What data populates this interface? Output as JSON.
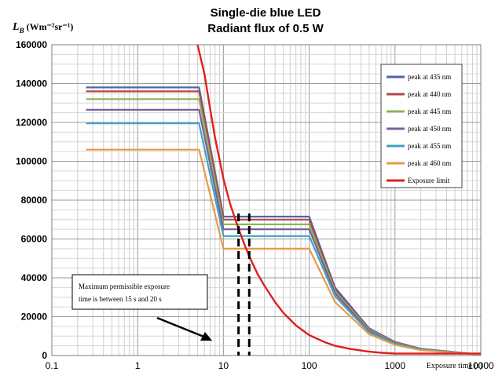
{
  "chart_data": {
    "type": "line",
    "title": "Single-die blue LED",
    "subtitle": "Radiant flux of 0.5 W",
    "ylabel": "L_B (Wm⁻²sr⁻¹)",
    "ylabel_main": "L",
    "ylabel_sub": "B",
    "ylabel_unit": "(Wm⁻²sr⁻¹)",
    "xlabel": "Exposure time (s)",
    "xscale": "log",
    "xlim": [
      0.1,
      10000
    ],
    "ylim": [
      0,
      160000
    ],
    "grid": true,
    "legend_position": "top-right",
    "x_tick_labels": [
      "0.1",
      "1",
      "10",
      "100",
      "1000",
      "10000"
    ],
    "y_tick_labels": [
      "0",
      "20000",
      "40000",
      "60000",
      "80000",
      "100000",
      "120000",
      "140000",
      "160000"
    ],
    "y_ticks": [
      0,
      20000,
      40000,
      60000,
      80000,
      100000,
      120000,
      140000,
      160000
    ],
    "x_ticks": [
      0.1,
      1,
      10,
      100,
      1000,
      10000
    ],
    "series": [
      {
        "name": "peak at 435 nm",
        "color": "#4a66ac",
        "x": [
          0.25,
          5.2,
          10,
          100,
          200,
          500,
          1000,
          2000,
          10000
        ],
        "y": [
          138000,
          138000,
          71500,
          71500,
          35000,
          14000,
          7000,
          3500,
          500
        ]
      },
      {
        "name": "peak at 440 nm",
        "color": "#b04a47",
        "x": [
          0.25,
          5.2,
          10,
          100,
          200,
          500,
          1000,
          2000,
          10000
        ],
        "y": [
          136000,
          136000,
          70000,
          70000,
          34000,
          13600,
          6800,
          3400,
          500
        ]
      },
      {
        "name": "peak at 445 nm",
        "color": "#8db356",
        "x": [
          0.25,
          5.2,
          10,
          100,
          200,
          500,
          1000,
          2000,
          10000
        ],
        "y": [
          132000,
          132000,
          67500,
          67500,
          33000,
          13200,
          6600,
          3300,
          500
        ]
      },
      {
        "name": "peak at 450 nm",
        "color": "#7a5ea0",
        "x": [
          0.25,
          5.2,
          10,
          100,
          200,
          500,
          1000,
          2000,
          10000
        ],
        "y": [
          126500,
          126500,
          65000,
          65000,
          32000,
          12700,
          6350,
          3200,
          500
        ]
      },
      {
        "name": "peak at 455 nm",
        "color": "#3fa3c4",
        "x": [
          0.25,
          5.2,
          10,
          100,
          200,
          500,
          1000,
          2000,
          10000
        ],
        "y": [
          119500,
          119500,
          61500,
          61500,
          30500,
          12000,
          6000,
          3000,
          500
        ]
      },
      {
        "name": "peak at 460 nm",
        "color": "#e69a47",
        "x": [
          0.25,
          5.2,
          10,
          100,
          200,
          500,
          1000,
          2000,
          10000
        ],
        "y": [
          106000,
          106000,
          55000,
          55000,
          27500,
          11000,
          5500,
          2750,
          500
        ]
      },
      {
        "name": "Exposure limit",
        "color": "#dd2020",
        "x": [
          5,
          6,
          7,
          8,
          9,
          10,
          12,
          14,
          16,
          18,
          20,
          25,
          30,
          40,
          50,
          70,
          100,
          150,
          200,
          300,
          500,
          700,
          1000,
          2000,
          5000,
          10000
        ],
        "y": [
          160000,
          145000,
          127000,
          112000,
          101000,
          91000,
          78000,
          69000,
          62000,
          56000,
          51000,
          42000,
          36000,
          27500,
          22000,
          15500,
          10500,
          7000,
          5000,
          3400,
          2000,
          1400,
          1000,
          1000,
          1000,
          1000
        ]
      }
    ],
    "annotation": {
      "text_line1": "Maximum permissible exposure",
      "text_line2": "time is between 15 s and 20 s",
      "range_x": [
        15,
        20
      ]
    }
  }
}
